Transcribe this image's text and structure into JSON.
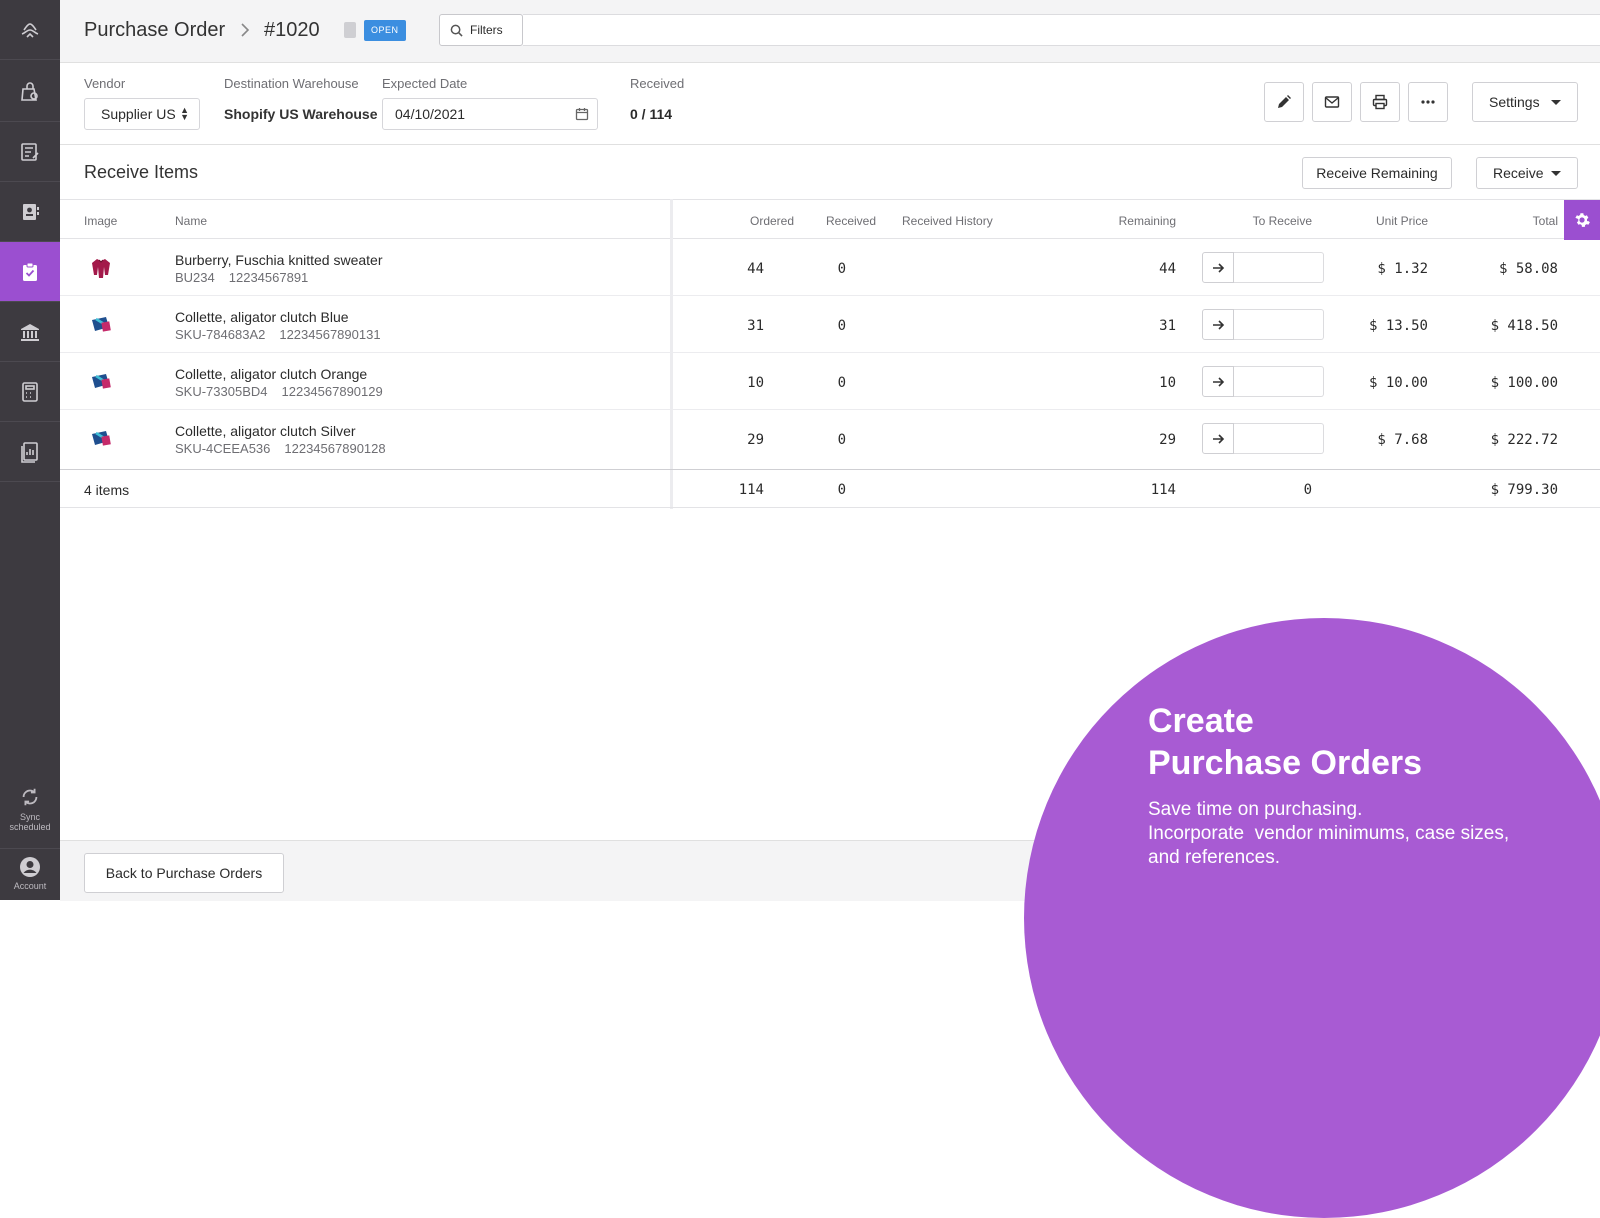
{
  "sidebar": {
    "items": [
      {
        "icon": "logo-icon"
      },
      {
        "icon": "reorder-icon"
      },
      {
        "icon": "inventory-icon"
      },
      {
        "icon": "vendors-icon"
      },
      {
        "icon": "purchase-orders-icon",
        "active": true
      },
      {
        "icon": "warehouse-icon"
      },
      {
        "icon": "calculator-icon"
      },
      {
        "icon": "reports-icon"
      }
    ],
    "sync_label_1": "Sync",
    "sync_label_2": "scheduled",
    "account_label": "Account"
  },
  "header": {
    "breadcrumb_root": "Purchase Order",
    "po_number": "#1020",
    "status_badge": "OPEN",
    "filters_label": "Filters"
  },
  "info": {
    "vendor_label": "Vendor",
    "vendor_value": "Supplier US",
    "warehouse_label": "Destination Warehouse",
    "warehouse_value": "Shopify US Warehouse",
    "date_label": "Expected Date",
    "date_value": "04/10/2021",
    "received_label": "Received",
    "received_value": "0 / 114",
    "settings_label": "Settings"
  },
  "receive": {
    "title": "Receive Items",
    "receive_remaining_label": "Receive Remaining",
    "receive_label": "Receive"
  },
  "table": {
    "headers": {
      "image": "Image",
      "name": "Name",
      "ordered": "Ordered",
      "received": "Received",
      "history": "Received History",
      "remaining": "Remaining",
      "to_receive": "To Receive",
      "unit_price": "Unit Price",
      "total": "Total"
    },
    "rows": [
      {
        "name": "Burberry, Fuschia knitted sweater",
        "sku": "BU234",
        "barcode": "12234567891",
        "ordered": "44",
        "received": "0",
        "remaining": "44",
        "unit_price": "$ 1.32",
        "total": "$ 58.08",
        "thumb": "sweater"
      },
      {
        "name": "Collette, aligator clutch Blue",
        "sku": "SKU-784683A2",
        "barcode": "12234567890131",
        "ordered": "31",
        "received": "0",
        "remaining": "31",
        "unit_price": "$ 13.50",
        "total": "$ 418.50",
        "thumb": "clutch"
      },
      {
        "name": "Collette, aligator clutch Orange",
        "sku": "SKU-73305BD4",
        "barcode": "12234567890129",
        "ordered": "10",
        "received": "0",
        "remaining": "10",
        "unit_price": "$ 10.00",
        "total": "$ 100.00",
        "thumb": "clutch"
      },
      {
        "name": "Collette, aligator clutch Silver",
        "sku": "SKU-4CEEA536",
        "barcode": "12234567890128",
        "ordered": "29",
        "received": "0",
        "remaining": "29",
        "unit_price": "$ 7.68",
        "total": "$ 222.72",
        "thumb": "clutch"
      }
    ],
    "footer": {
      "items_count": "4 items",
      "ordered": "114",
      "received": "0",
      "remaining": "114",
      "to_receive": "0",
      "total": "$ 799.30"
    }
  },
  "bottom": {
    "back_label": "Back to Purchase Orders"
  },
  "promo": {
    "title_line1": "Create",
    "title_line2": "Purchase Orders",
    "text_line1": "Save time on purchasing.",
    "text_line2": "Incorporate  vendor minimums, case sizes,",
    "text_line3": "and references."
  },
  "colors": {
    "accent": "#9b4fd0",
    "sidebar_bg": "#3d3a40",
    "badge_blue": "#3b8ee0",
    "promo_purple": "#a85bd3"
  }
}
